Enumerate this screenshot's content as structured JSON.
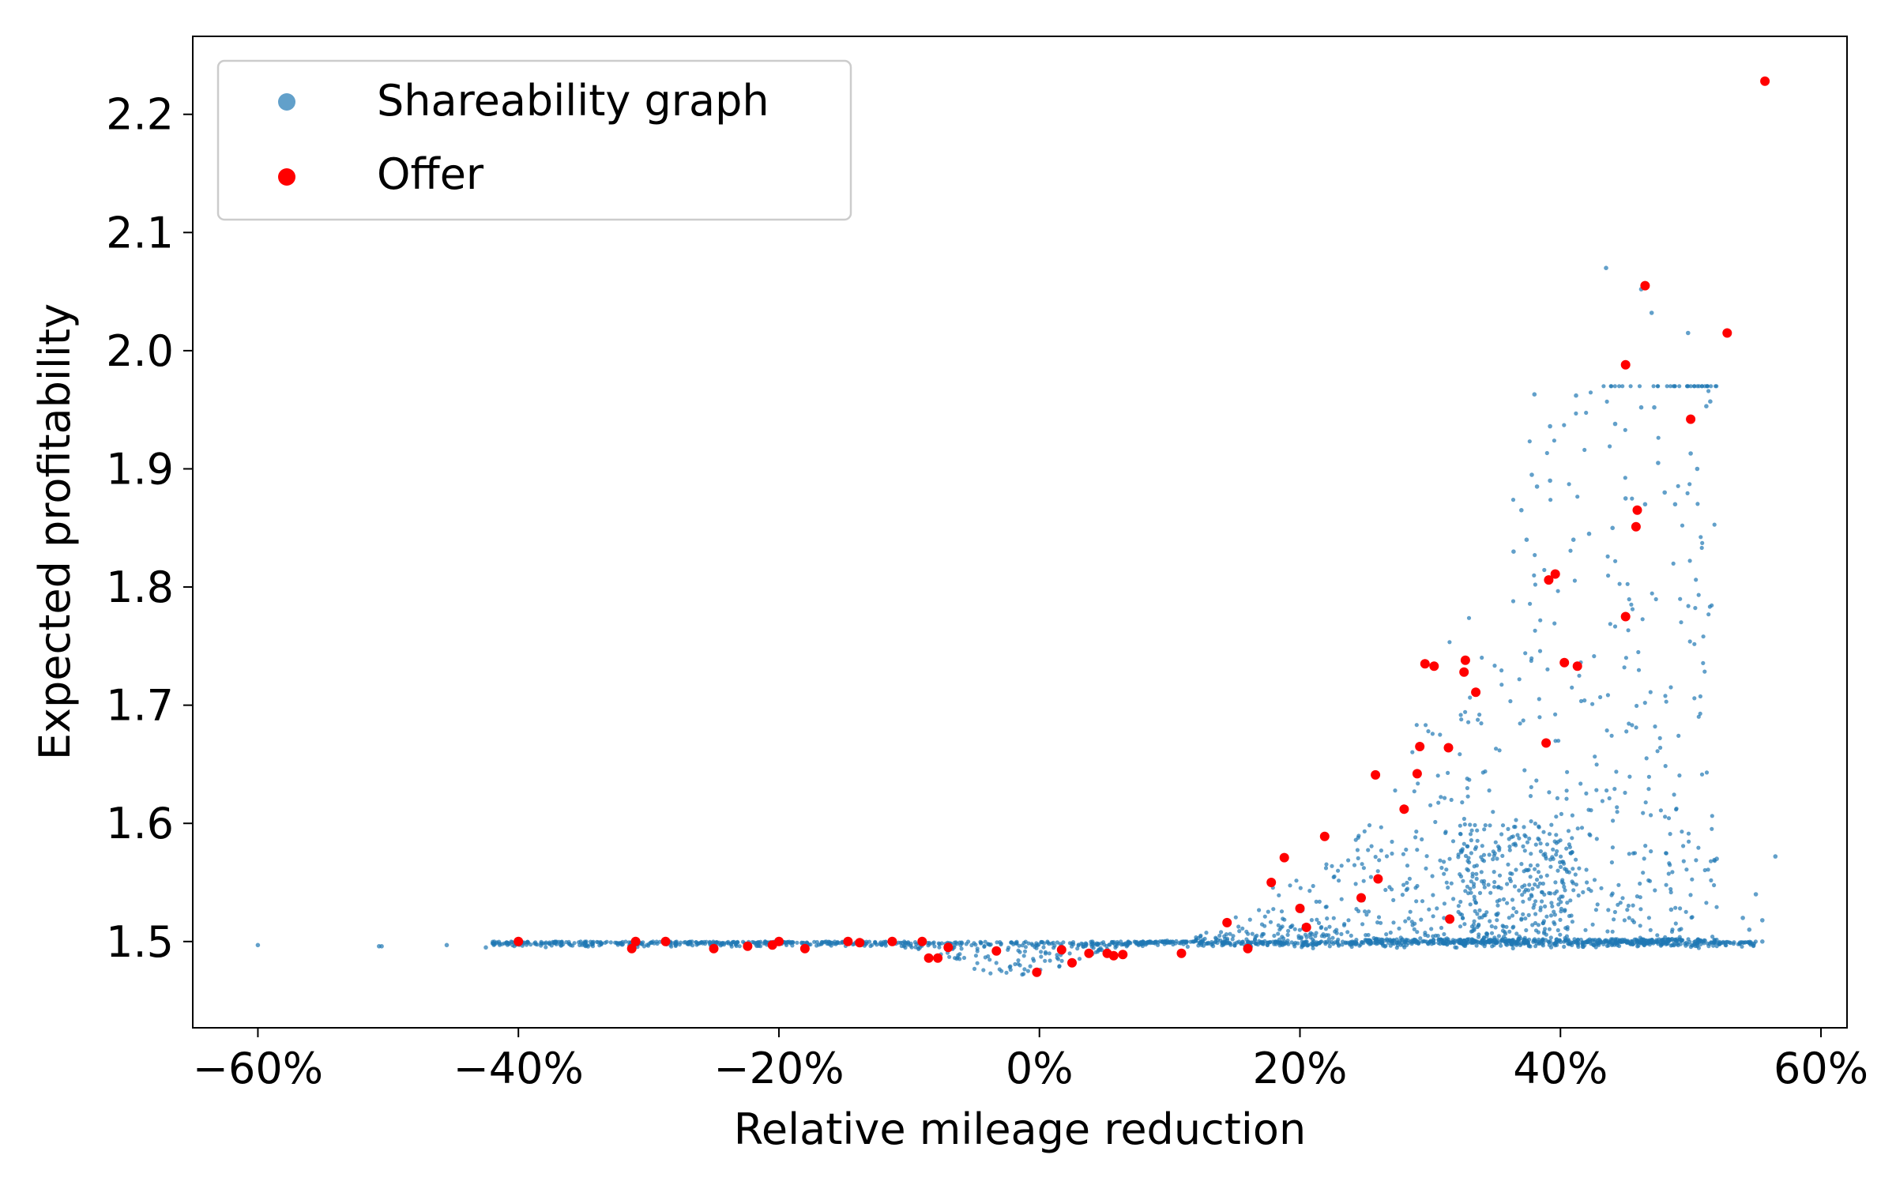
{
  "chart_data": {
    "type": "scatter",
    "title": "",
    "xlabel": "Relative mileage reduction",
    "ylabel": "Expected profitability",
    "xlim": [
      -0.65,
      0.62
    ],
    "ylim": [
      1.427,
      2.266
    ],
    "grid": false,
    "legend_position": "top-left",
    "x_ticks": [
      {
        "value": -0.6,
        "label": "−60%"
      },
      {
        "value": -0.4,
        "label": "−40%"
      },
      {
        "value": -0.2,
        "label": "−20%"
      },
      {
        "value": 0.0,
        "label": "0%"
      },
      {
        "value": 0.2,
        "label": "20%"
      },
      {
        "value": 0.4,
        "label": "40%"
      },
      {
        "value": 0.6,
        "label": "60%"
      }
    ],
    "y_ticks": [
      {
        "value": 1.5,
        "label": "1.5"
      },
      {
        "value": 1.6,
        "label": "1.6"
      },
      {
        "value": 1.7,
        "label": "1.7"
      },
      {
        "value": 1.8,
        "label": "1.8"
      },
      {
        "value": 1.9,
        "label": "1.9"
      },
      {
        "value": 2.0,
        "label": "2.0"
      },
      {
        "value": 2.1,
        "label": "2.1"
      },
      {
        "value": 2.2,
        "label": "2.2"
      }
    ],
    "series": [
      {
        "name": "Shareability graph",
        "color": "#1f77b4",
        "opacity": 0.7,
        "marker": "small-dot",
        "points": [
          [
            -0.6,
            1.497
          ],
          [
            -0.507,
            1.496
          ],
          [
            -0.505,
            1.496
          ],
          [
            -0.455,
            1.497
          ],
          [
            -0.425,
            1.495
          ],
          [
            0.435,
            2.07
          ],
          [
            0.462,
            2.052
          ],
          [
            0.47,
            2.032
          ],
          [
            0.498,
            2.015
          ],
          [
            0.38,
            1.963
          ],
          [
            0.412,
            1.962
          ],
          [
            0.392,
            1.936
          ],
          [
            0.442,
            1.938
          ],
          [
            0.462,
            1.952
          ],
          [
            0.472,
            1.952
          ],
          [
            0.515,
            1.957
          ],
          [
            0.512,
            1.953
          ],
          [
            0.5,
            1.913
          ],
          [
            0.505,
            1.9
          ],
          [
            0.475,
            1.905
          ],
          [
            0.45,
            1.875
          ],
          [
            0.48,
            1.88
          ],
          [
            0.488,
            1.87
          ],
          [
            0.44,
            1.85
          ],
          [
            0.465,
            1.87
          ],
          [
            0.378,
            1.895
          ],
          [
            0.382,
            1.885
          ],
          [
            0.392,
            1.89
          ],
          [
            0.37,
            1.865
          ],
          [
            0.374,
            1.84
          ],
          [
            0.364,
            1.83
          ],
          [
            0.41,
            1.84
          ],
          [
            0.422,
            1.845
          ],
          [
            0.52,
            1.57
          ],
          [
            0.565,
            1.572
          ],
          [
            0.55,
            1.54
          ],
          [
            0.54,
            1.52
          ],
          [
            0.545,
            1.51
          ],
          [
            0.555,
            1.518
          ],
          [
            0.555,
            1.5
          ],
          [
            0.485,
            1.527
          ]
        ]
      },
      {
        "name": "Offer",
        "color": "#ff0000",
        "opacity": 1,
        "marker": "dot",
        "points": [
          [
            0.557,
            2.228
          ],
          [
            0.465,
            2.055
          ],
          [
            0.528,
            2.015
          ],
          [
            0.45,
            1.988
          ],
          [
            0.5,
            1.942
          ],
          [
            0.459,
            1.865
          ],
          [
            0.458,
            1.851
          ],
          [
            0.396,
            1.811
          ],
          [
            0.391,
            1.806
          ],
          [
            0.45,
            1.775
          ],
          [
            0.403,
            1.736
          ],
          [
            0.413,
            1.733
          ],
          [
            0.296,
            1.735
          ],
          [
            0.303,
            1.733
          ],
          [
            0.327,
            1.738
          ],
          [
            0.326,
            1.728
          ],
          [
            0.335,
            1.711
          ],
          [
            0.292,
            1.665
          ],
          [
            0.314,
            1.664
          ],
          [
            0.389,
            1.668
          ],
          [
            0.29,
            1.642
          ],
          [
            0.258,
            1.641
          ],
          [
            0.28,
            1.612
          ],
          [
            0.188,
            1.571
          ],
          [
            0.219,
            1.589
          ],
          [
            0.178,
            1.55
          ],
          [
            0.26,
            1.553
          ],
          [
            0.247,
            1.537
          ],
          [
            0.2,
            1.528
          ],
          [
            0.205,
            1.512
          ],
          [
            0.315,
            1.519
          ],
          [
            0.144,
            1.516
          ],
          [
            0.16,
            1.494
          ],
          [
            0.109,
            1.49
          ],
          [
            0.052,
            1.49
          ],
          [
            0.064,
            1.489
          ],
          [
            0.038,
            1.49
          ],
          [
            0.057,
            1.488
          ],
          [
            0.017,
            1.493
          ],
          [
            0.025,
            1.482
          ],
          [
            -0.002,
            1.474
          ],
          [
            -0.033,
            1.492
          ],
          [
            -0.07,
            1.495
          ],
          [
            -0.09,
            1.5
          ],
          [
            -0.078,
            1.486
          ],
          [
            -0.085,
            1.486
          ],
          [
            -0.113,
            1.5
          ],
          [
            -0.138,
            1.499
          ],
          [
            -0.147,
            1.5
          ],
          [
            -0.18,
            1.494
          ],
          [
            -0.2,
            1.5
          ],
          [
            -0.205,
            1.497
          ],
          [
            -0.224,
            1.496
          ],
          [
            -0.25,
            1.494
          ],
          [
            -0.287,
            1.5
          ],
          [
            -0.31,
            1.5
          ],
          [
            -0.313,
            1.494
          ],
          [
            -0.4,
            1.5
          ]
        ]
      }
    ]
  }
}
